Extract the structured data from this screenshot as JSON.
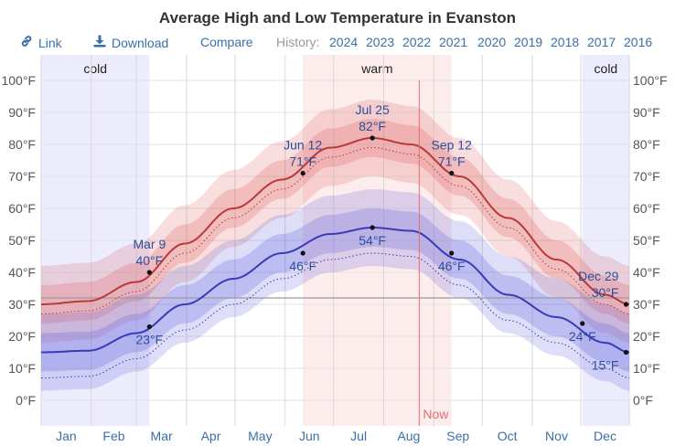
{
  "title": "Average High and Low Temperature in Evanston",
  "toolbar": {
    "link_label": "Link",
    "download_label": "Download",
    "compare_label": "Compare",
    "history_label": "History:",
    "years": [
      "2024",
      "2023",
      "2022",
      "2021",
      "2020",
      "2019",
      "2018",
      "2017",
      "2016"
    ],
    "link_icon": "link-icon",
    "download_icon": "download-icon"
  },
  "colors": {
    "high_line": "#b83a3a",
    "low_line": "#3a3ab8",
    "cold_band": "#ececfd",
    "warm_band": "#fdecec",
    "now_line": "#e07070",
    "link": "#3b6fa8"
  },
  "chart_data": {
    "type": "line",
    "title": "Average High and Low Temperature in Evanston",
    "x_unit": "day of year",
    "xlim": [
      1,
      365
    ],
    "ylim": [
      -8,
      108
    ],
    "y_ticks": [
      0,
      10,
      20,
      30,
      40,
      50,
      60,
      70,
      80,
      90,
      100
    ],
    "y_tick_labels": [
      "0°F",
      "10°F",
      "20°F",
      "30°F",
      "40°F",
      "50°F",
      "60°F",
      "70°F",
      "80°F",
      "90°F",
      "100°F"
    ],
    "months": [
      "Jan",
      "Feb",
      "Mar",
      "Apr",
      "May",
      "Jun",
      "Jul",
      "Aug",
      "Sep",
      "Oct",
      "Nov",
      "Dec"
    ],
    "freezing_line": 32,
    "grid": true,
    "seasons": [
      {
        "label": "cold",
        "start": 1,
        "end": 68
      },
      {
        "label": "warm",
        "start": 163,
        "end": 255
      },
      {
        "label": "cold",
        "start": 336,
        "end": 365
      }
    ],
    "now": {
      "label": "Now",
      "day": 235
    },
    "series": [
      {
        "name": "",
        "key": "high",
        "x": [
          1,
          30,
          60,
          90,
          120,
          150,
          180,
          206,
          230,
          260,
          290,
          320,
          350,
          365
        ],
        "y": [
          30,
          31,
          37,
          49,
          60,
          69,
          79,
          82,
          80,
          70,
          57,
          44,
          33,
          30
        ]
      },
      {
        "name": "",
        "key": "low",
        "x": [
          1,
          30,
          60,
          90,
          120,
          150,
          180,
          206,
          230,
          260,
          290,
          320,
          350,
          365
        ],
        "y": [
          15,
          15.5,
          21,
          30,
          38,
          46,
          52,
          54,
          53,
          44,
          33,
          26,
          18,
          15
        ]
      }
    ],
    "annotations": [
      {
        "date": "Mar 9",
        "value": "40°F",
        "day": 68,
        "temp": 40,
        "series": "high",
        "pos": "above"
      },
      {
        "date": "",
        "value": "23°F",
        "day": 68,
        "temp": 23,
        "series": "low",
        "pos": "below"
      },
      {
        "date": "Jun 12",
        "value": "71°F",
        "day": 163,
        "temp": 71,
        "series": "high",
        "pos": "above"
      },
      {
        "date": "",
        "value": "46°F",
        "day": 163,
        "temp": 46,
        "series": "low",
        "pos": "below"
      },
      {
        "date": "Jul 25",
        "value": "82°F",
        "day": 206,
        "temp": 82,
        "series": "high",
        "pos": "above"
      },
      {
        "date": "",
        "value": "54°F",
        "day": 206,
        "temp": 54,
        "series": "low",
        "pos": "below"
      },
      {
        "date": "Sep 12",
        "value": "71°F",
        "day": 255,
        "temp": 71,
        "series": "high",
        "pos": "above"
      },
      {
        "date": "",
        "value": "46°F",
        "day": 255,
        "temp": 46,
        "series": "low",
        "pos": "below"
      },
      {
        "date": "Dec 29",
        "value": "30°F",
        "day": 363,
        "temp": 30,
        "series": "high",
        "pos": "above-left"
      },
      {
        "date": "",
        "value": "24°F",
        "day": 336,
        "temp": 24,
        "series": "low",
        "pos": "below"
      },
      {
        "date": "",
        "value": "15°F",
        "day": 363,
        "temp": 15,
        "series": "low",
        "pos": "below-left"
      }
    ]
  }
}
